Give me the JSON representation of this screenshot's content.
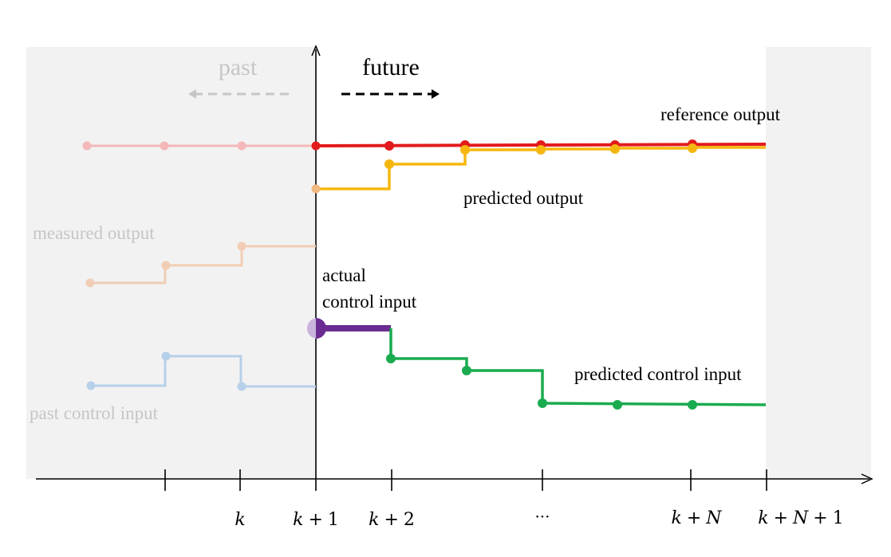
{
  "labels": {
    "past": "past",
    "future": "future",
    "reference_output": "reference output",
    "predicted_output": "predicted output",
    "measured_output": "measured output",
    "actual_control_line1": "actual",
    "actual_control_line2": "control input",
    "predicted_control_input": "predicted control input",
    "past_control_input": "past control input"
  },
  "ticks": {
    "k": "k",
    "k1_a": "k",
    "k1_op": "+",
    "k1_b": "1",
    "k2_a": "k",
    "k2_op": "+",
    "k2_b": "2",
    "dots": "···",
    "kN_a": "k",
    "kN_op": "+",
    "kN_b": "N",
    "kN1_a": "k",
    "kN1_op": "+",
    "kN1_b": "N",
    "kN1_op2": "+",
    "kN1_c": "1"
  },
  "colors": {
    "reference": "#e31a1c",
    "reference_past": "#f4b8b8",
    "predicted_output": "#f5b70f",
    "predicted_output_light": "#f2b880",
    "measured_output": "#f1cdb5",
    "actual_control": "#6a2c91",
    "actual_control_light": "#c9b2dc",
    "predicted_control": "#1aab4f",
    "past_control": "#b7d0ea",
    "shade": "#f2f2f2",
    "faded_text": "#c6c6c6",
    "axis": "#000000"
  }
}
